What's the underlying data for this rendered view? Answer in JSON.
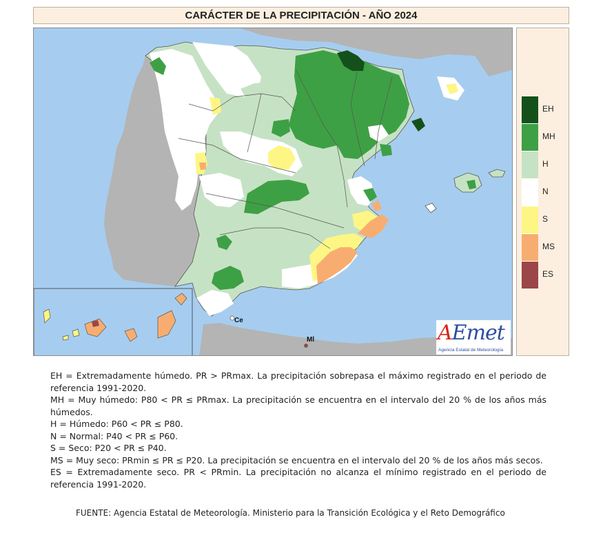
{
  "title": "CARÁCTER DE LA PRECIPITACIÓN - AÑO 2024",
  "colors": {
    "EH": "#14511a",
    "MH": "#3ea045",
    "H": "#c6e2c4",
    "N": "#ffffff",
    "S": "#fdf684",
    "MS": "#f8ad70",
    "ES": "#9b4648",
    "sea": "#a6cdef",
    "foreign_land": "#b4b4b4"
  },
  "legend": [
    {
      "code": "EH",
      "label": "EH",
      "color": "#14511a"
    },
    {
      "code": "MH",
      "label": "MH",
      "color": "#3ea045"
    },
    {
      "code": "H",
      "label": "H",
      "color": "#c6e2c4"
    },
    {
      "code": "N",
      "label": "N",
      "color": "#ffffff"
    },
    {
      "code": "S",
      "label": "S",
      "color": "#fdf684"
    },
    {
      "code": "MS",
      "label": "MS",
      "color": "#f8ad70"
    },
    {
      "code": "ES",
      "label": "ES",
      "color": "#9b4648"
    }
  ],
  "map_labels": {
    "ceuta": "Ce",
    "melilla": "Ml"
  },
  "logo": {
    "word": "AEmet",
    "subtitle": "Agencia Estatal de Meteorología"
  },
  "definitions": [
    "EH = Extremadamente húmedo. PR > PRmax. La precipitación sobrepasa el máximo registrado en el periodo de referencia 1991-2020.",
    "MH = Muy húmedo: P80 < PR ≤ PRmax. La precipitación se encuentra en el intervalo del 20 % de los años más húmedos.",
    "H = Húmedo: P60 < PR ≤ P80.",
    "N = Normal: P40 < PR ≤ P60.",
    "S = Seco: P20 < PR ≤ P40.",
    "MS = Muy seco: PRmin ≤ PR ≤ P20. La precipitación se encuentra en el intervalo del 20 % de los años más secos.",
    "ES = Extremadamente seco. PR < PRmin. La precipitación no alcanza el mínimo registrado en el periodo de referencia 1991-2020."
  ],
  "source": "FUENTE: Agencia Estatal de Meteorología. Ministerio para la Transición Ecológica y el Reto Demográfico"
}
